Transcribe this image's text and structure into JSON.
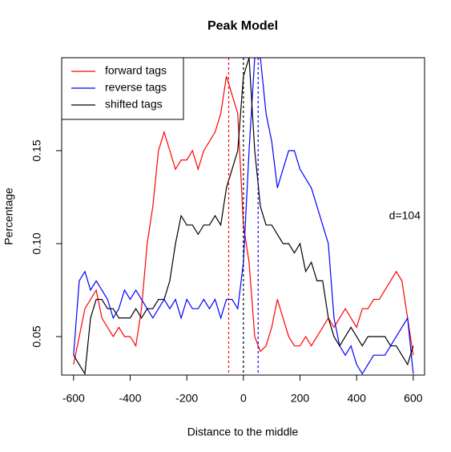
{
  "chart_data": {
    "type": "line",
    "title": "Peak Model",
    "xlabel": "Distance to the middle",
    "ylabel": "Percentage",
    "x": [
      -600,
      -580,
      -560,
      -540,
      -520,
      -500,
      -480,
      -460,
      -440,
      -420,
      -400,
      -380,
      -360,
      -340,
      -320,
      -300,
      -280,
      -260,
      -240,
      -220,
      -200,
      -180,
      -160,
      -140,
      -120,
      -100,
      -80,
      -60,
      -40,
      -20,
      0,
      20,
      40,
      60,
      80,
      100,
      120,
      140,
      160,
      180,
      200,
      220,
      240,
      260,
      280,
      300,
      320,
      340,
      360,
      380,
      400,
      420,
      440,
      460,
      480,
      500,
      520,
      540,
      560,
      580,
      600
    ],
    "series": [
      {
        "name": "forward tags",
        "color": "#ff0000",
        "values": [
          0.035,
          0.05,
          0.065,
          0.07,
          0.075,
          0.06,
          0.055,
          0.05,
          0.055,
          0.05,
          0.05,
          0.045,
          0.065,
          0.1,
          0.12,
          0.15,
          0.16,
          0.15,
          0.14,
          0.145,
          0.145,
          0.15,
          0.14,
          0.15,
          0.155,
          0.16,
          0.17,
          0.19,
          0.18,
          0.17,
          0.11,
          0.09,
          0.05,
          0.042,
          0.045,
          0.055,
          0.07,
          0.06,
          0.05,
          0.045,
          0.045,
          0.05,
          0.045,
          0.05,
          0.055,
          0.06,
          0.055,
          0.06,
          0.065,
          0.06,
          0.055,
          0.065,
          0.065,
          0.07,
          0.07,
          0.075,
          0.08,
          0.085,
          0.08,
          0.06,
          0.04
        ]
      },
      {
        "name": "reverse tags",
        "color": "#0000ff",
        "values": [
          0.04,
          0.08,
          0.085,
          0.075,
          0.08,
          0.075,
          0.07,
          0.06,
          0.065,
          0.075,
          0.07,
          0.075,
          0.07,
          0.065,
          0.06,
          0.065,
          0.07,
          0.065,
          0.07,
          0.06,
          0.07,
          0.065,
          0.065,
          0.07,
          0.065,
          0.07,
          0.06,
          0.07,
          0.07,
          0.065,
          0.09,
          0.15,
          0.2,
          0.2,
          0.17,
          0.155,
          0.13,
          0.14,
          0.15,
          0.15,
          0.14,
          0.135,
          0.13,
          0.12,
          0.11,
          0.1,
          0.06,
          0.045,
          0.04,
          0.045,
          0.035,
          0.03,
          0.035,
          0.04,
          0.04,
          0.04,
          0.045,
          0.05,
          0.055,
          0.06,
          0.03
        ]
      },
      {
        "name": "shifted tags",
        "color": "#000000",
        "values": [
          0.04,
          0.035,
          0.03,
          0.06,
          0.07,
          0.07,
          0.065,
          0.065,
          0.06,
          0.06,
          0.06,
          0.065,
          0.06,
          0.065,
          0.065,
          0.07,
          0.07,
          0.08,
          0.1,
          0.115,
          0.11,
          0.11,
          0.105,
          0.11,
          0.11,
          0.115,
          0.11,
          0.13,
          0.14,
          0.15,
          0.19,
          0.2,
          0.15,
          0.12,
          0.11,
          0.11,
          0.105,
          0.1,
          0.1,
          0.095,
          0.1,
          0.085,
          0.09,
          0.08,
          0.08,
          0.06,
          0.05,
          0.045,
          0.05,
          0.055,
          0.05,
          0.045,
          0.05,
          0.05,
          0.05,
          0.05,
          0.045,
          0.045,
          0.04,
          0.035,
          0.045
        ]
      }
    ],
    "vlines": [
      {
        "x": -52,
        "color": "#ff0000"
      },
      {
        "x": 0,
        "color": "#000000"
      },
      {
        "x": 52,
        "color": "#0000ff"
      }
    ],
    "annotation": "d=104",
    "xlim": [
      -642,
      640
    ],
    "ylim": [
      0.0293,
      0.2
    ],
    "xticks": [
      -600,
      -400,
      -200,
      0,
      200,
      400,
      600
    ],
    "yticks": [
      0.05,
      {
        "value": 0.1,
        "label": "0.10"
      },
      0.15
    ],
    "grid": false,
    "legend": "topleft"
  }
}
